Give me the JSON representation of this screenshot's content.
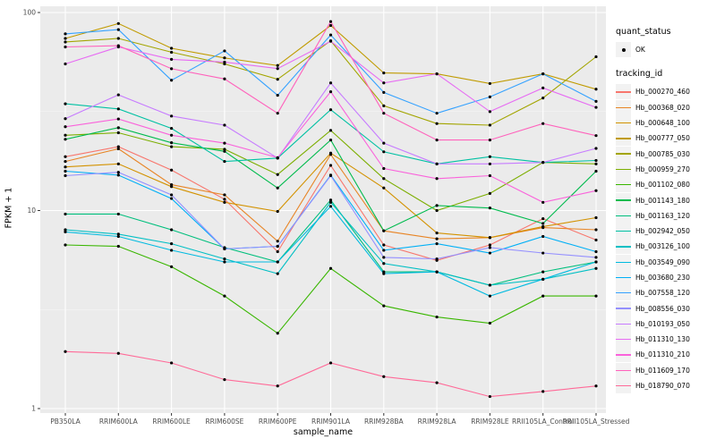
{
  "figure": {
    "background": "#FFFFFF",
    "panel_background": "#EBEBEB",
    "grid_major_color": "#FFFFFF",
    "grid_minor_color": "#F7F7F7",
    "tick_label_color": "#4D4D4D",
    "tick_mark_color": "#333333"
  },
  "axes": {
    "xlabel": "sample_name",
    "ylabel": "FPKM + 1"
  },
  "legend": {
    "quant_title": "quant_status",
    "quant_items": [
      {
        "label": "OK",
        "marker": "black-point"
      }
    ],
    "tracking_title": "tracking_id"
  },
  "chart_data": {
    "type": "line",
    "xlabel": "sample_name",
    "ylabel": "FPKM + 1",
    "y_scale": "log10",
    "ylim": [
      1,
      100
    ],
    "y_major_ticks": [
      1,
      10,
      100
    ],
    "y_minor_ticks": [
      3.162,
      31.623
    ],
    "grid": true,
    "legend_position": "right",
    "marker": {
      "shape": "point",
      "color": "#000000"
    },
    "categories": [
      "PB350LA",
      "RRIM600LA",
      "RRIM600LE",
      "RRIM600SE",
      "RRIM600PE",
      "RRIM901LA",
      "RRIM928BA",
      "RRIM928LA",
      "RRIM928LE",
      "RRII105LA_Control",
      "RRII105LA_Stressed"
    ],
    "series": [
      {
        "name": "Hb_000270_460",
        "color": "#F8766D",
        "values": [
          18.7,
          21.0,
          16.0,
          11.4,
          6.2,
          16.9,
          6.7,
          5.6,
          6.7,
          9.1,
          7.1
        ]
      },
      {
        "name": "Hb_000368_020",
        "color": "#E88526",
        "values": [
          17.7,
          20.5,
          13.5,
          12.0,
          7.0,
          19.2,
          7.9,
          7.2,
          7.3,
          8.2,
          8.0
        ]
      },
      {
        "name": "Hb_000648_100",
        "color": "#D39200",
        "values": [
          16.6,
          17.2,
          13.2,
          11.0,
          9.9,
          19.5,
          13.0,
          7.7,
          7.3,
          8.3,
          9.2
        ]
      },
      {
        "name": "Hb_000777_050",
        "color": "#C09B00",
        "values": [
          74.0,
          88.0,
          66.0,
          59.0,
          54.0,
          86.0,
          49.5,
          49.0,
          43.8,
          49.0,
          41.0
        ]
      },
      {
        "name": "Hb_000785_030",
        "color": "#A3A500",
        "values": [
          71.0,
          74.0,
          63.0,
          55.0,
          46.0,
          72.0,
          33.8,
          27.5,
          27.0,
          37.0,
          59.8
        ]
      },
      {
        "name": "Hb_000959_270",
        "color": "#7CAE00",
        "values": [
          24.0,
          24.7,
          21.0,
          20.4,
          15.2,
          25.4,
          14.5,
          10.0,
          12.2,
          17.5,
          17.2
        ]
      },
      {
        "name": "Hb_001102_080",
        "color": "#39B600",
        "values": [
          6.7,
          6.6,
          5.2,
          3.7,
          2.4,
          5.1,
          3.3,
          2.9,
          2.7,
          3.7,
          3.7
        ]
      },
      {
        "name": "Hb_001143_180",
        "color": "#00BB4E",
        "values": [
          22.9,
          26.2,
          22.0,
          19.9,
          13.0,
          22.7,
          7.9,
          10.6,
          10.3,
          8.6,
          15.8
        ]
      },
      {
        "name": "Hb_001163_120",
        "color": "#00BF7D",
        "values": [
          9.6,
          9.6,
          8.0,
          6.5,
          5.5,
          11.3,
          4.9,
          4.9,
          4.2,
          4.9,
          5.5
        ]
      },
      {
        "name": "Hb_002942_050",
        "color": "#00C1A3",
        "values": [
          34.6,
          32.6,
          26.0,
          17.7,
          18.4,
          32.3,
          19.8,
          17.2,
          18.7,
          17.5,
          17.9
        ]
      },
      {
        "name": "Hb_003126_100",
        "color": "#00BFC4",
        "values": [
          8.0,
          7.6,
          6.8,
          5.7,
          4.8,
          11.0,
          5.4,
          4.9,
          4.2,
          4.5,
          5.1
        ]
      },
      {
        "name": "Hb_003549_090",
        "color": "#00BAE0",
        "values": [
          7.8,
          7.4,
          6.3,
          5.5,
          5.5,
          10.5,
          4.8,
          4.9,
          3.7,
          4.5,
          5.5
        ]
      },
      {
        "name": "Hb_003680_230",
        "color": "#00B0F6",
        "values": [
          15.8,
          15.1,
          11.5,
          6.4,
          6.6,
          15.1,
          6.3,
          6.8,
          6.1,
          7.4,
          6.2
        ]
      },
      {
        "name": "Hb_007558_120",
        "color": "#35A2FF",
        "values": [
          78.0,
          82.0,
          45.5,
          64.0,
          38.2,
          77.0,
          39.5,
          31.0,
          37.5,
          49.0,
          35.6
        ]
      },
      {
        "name": "Hb_008556_030",
        "color": "#9590FF",
        "values": [
          15.0,
          15.6,
          12.0,
          6.4,
          6.6,
          15.0,
          5.8,
          5.7,
          6.5,
          6.1,
          5.8
        ]
      },
      {
        "name": "Hb_010193_050",
        "color": "#C77CFF",
        "values": [
          29.1,
          38.4,
          30.0,
          27.0,
          18.4,
          44.1,
          21.9,
          17.2,
          17.2,
          17.5,
          20.6
        ]
      },
      {
        "name": "Hb_011310_130",
        "color": "#E76BF3",
        "values": [
          55.0,
          67.0,
          58.0,
          56.2,
          52.1,
          71.6,
          44.1,
          49.0,
          31.6,
          41.6,
          33.2
        ]
      },
      {
        "name": "Hb_011310_210",
        "color": "#FA62DB",
        "values": [
          26.5,
          29.0,
          24.0,
          21.9,
          18.5,
          39.8,
          16.3,
          14.5,
          15.0,
          11.0,
          12.6
        ]
      },
      {
        "name": "Hb_011609_170",
        "color": "#FF62BC",
        "values": [
          67.0,
          68.0,
          52.0,
          46.2,
          31.0,
          90.0,
          31.0,
          22.7,
          22.7,
          27.5,
          23.9
        ]
      },
      {
        "name": "Hb_018790_070",
        "color": "#FF6A98",
        "values": [
          1.94,
          1.9,
          1.7,
          1.4,
          1.3,
          1.7,
          1.45,
          1.35,
          1.15,
          1.22,
          1.3
        ]
      }
    ]
  }
}
